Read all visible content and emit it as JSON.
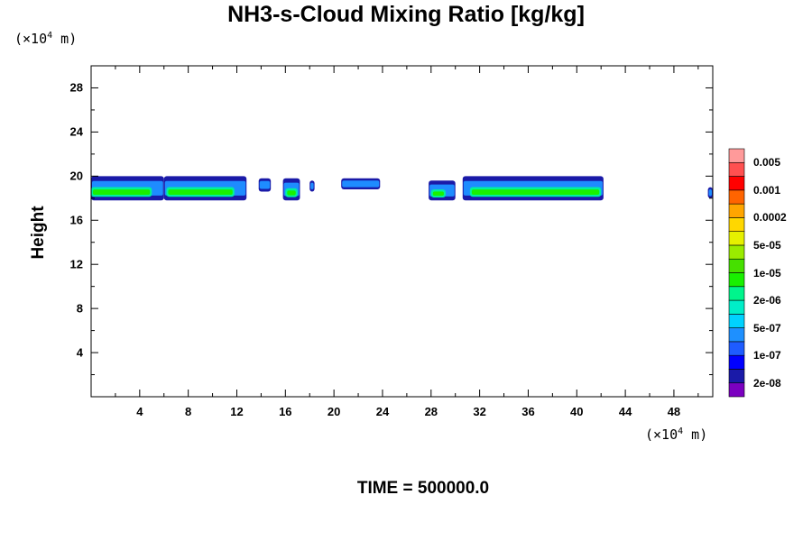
{
  "chart_data": {
    "type": "heatmap",
    "title": "NH3-s-Cloud Mixing Ratio [kg/kg]",
    "ylabel": "Height",
    "y_unit": {
      "prefix": "(×10",
      "exp": "4",
      "suffix": " m)"
    },
    "x_unit": {
      "prefix": "(×10",
      "exp": "4",
      "suffix": " m)"
    },
    "xlim": [
      0,
      51.2
    ],
    "ylim": [
      0,
      30
    ],
    "xticks": [
      4,
      8,
      12,
      16,
      20,
      24,
      28,
      32,
      36,
      40,
      44,
      48
    ],
    "yticks": [
      4,
      8,
      12,
      16,
      20,
      24,
      28
    ],
    "colorbar": {
      "levels": [
        "2e-08",
        "1e-07",
        "5e-07",
        "2e-06",
        "1e-05",
        "5e-05",
        "0.0002",
        "0.001",
        "0.005"
      ],
      "colors": [
        "#7b00c0",
        "#1a1aa8",
        "#0000ff",
        "#1e5cff",
        "#1e90ff",
        "#00d2ff",
        "#00eec8",
        "#00f58c",
        "#19f000",
        "#46e000",
        "#9aeb00",
        "#e6f000",
        "#ffd700",
        "#ffa500",
        "#ff6400",
        "#ff0000",
        "#ff5050",
        "#ff9a9a"
      ]
    },
    "cloud_segments": [
      {
        "x": [
          0,
          6.0
        ],
        "y": [
          17.8,
          20.0
        ],
        "core": [
          0,
          5.0
        ]
      },
      {
        "x": [
          6.0,
          12.8
        ],
        "y": [
          17.8,
          20.0
        ],
        "core": [
          6.2,
          11.8
        ]
      },
      {
        "x": [
          13.8,
          14.8
        ],
        "y": [
          18.6,
          19.8
        ],
        "core": null
      },
      {
        "x": [
          15.8,
          17.2
        ],
        "y": [
          17.8,
          19.8
        ],
        "core": [
          16.0,
          17.0
        ]
      },
      {
        "x": [
          18.0,
          18.4
        ],
        "y": [
          18.6,
          19.6
        ],
        "core": null
      },
      {
        "x": [
          20.6,
          23.8
        ],
        "y": [
          18.8,
          19.8
        ],
        "core": null
      },
      {
        "x": [
          27.8,
          30.0
        ],
        "y": [
          17.8,
          19.6
        ],
        "core": [
          28.0,
          29.2
        ]
      },
      {
        "x": [
          30.6,
          42.2
        ],
        "y": [
          17.8,
          20.0
        ],
        "core": [
          31.2,
          42.0
        ]
      },
      {
        "x": [
          50.8,
          51.2
        ],
        "y": [
          18.0,
          19.0
        ],
        "core": null
      }
    ],
    "annotation": "TIME = 500000.0"
  }
}
